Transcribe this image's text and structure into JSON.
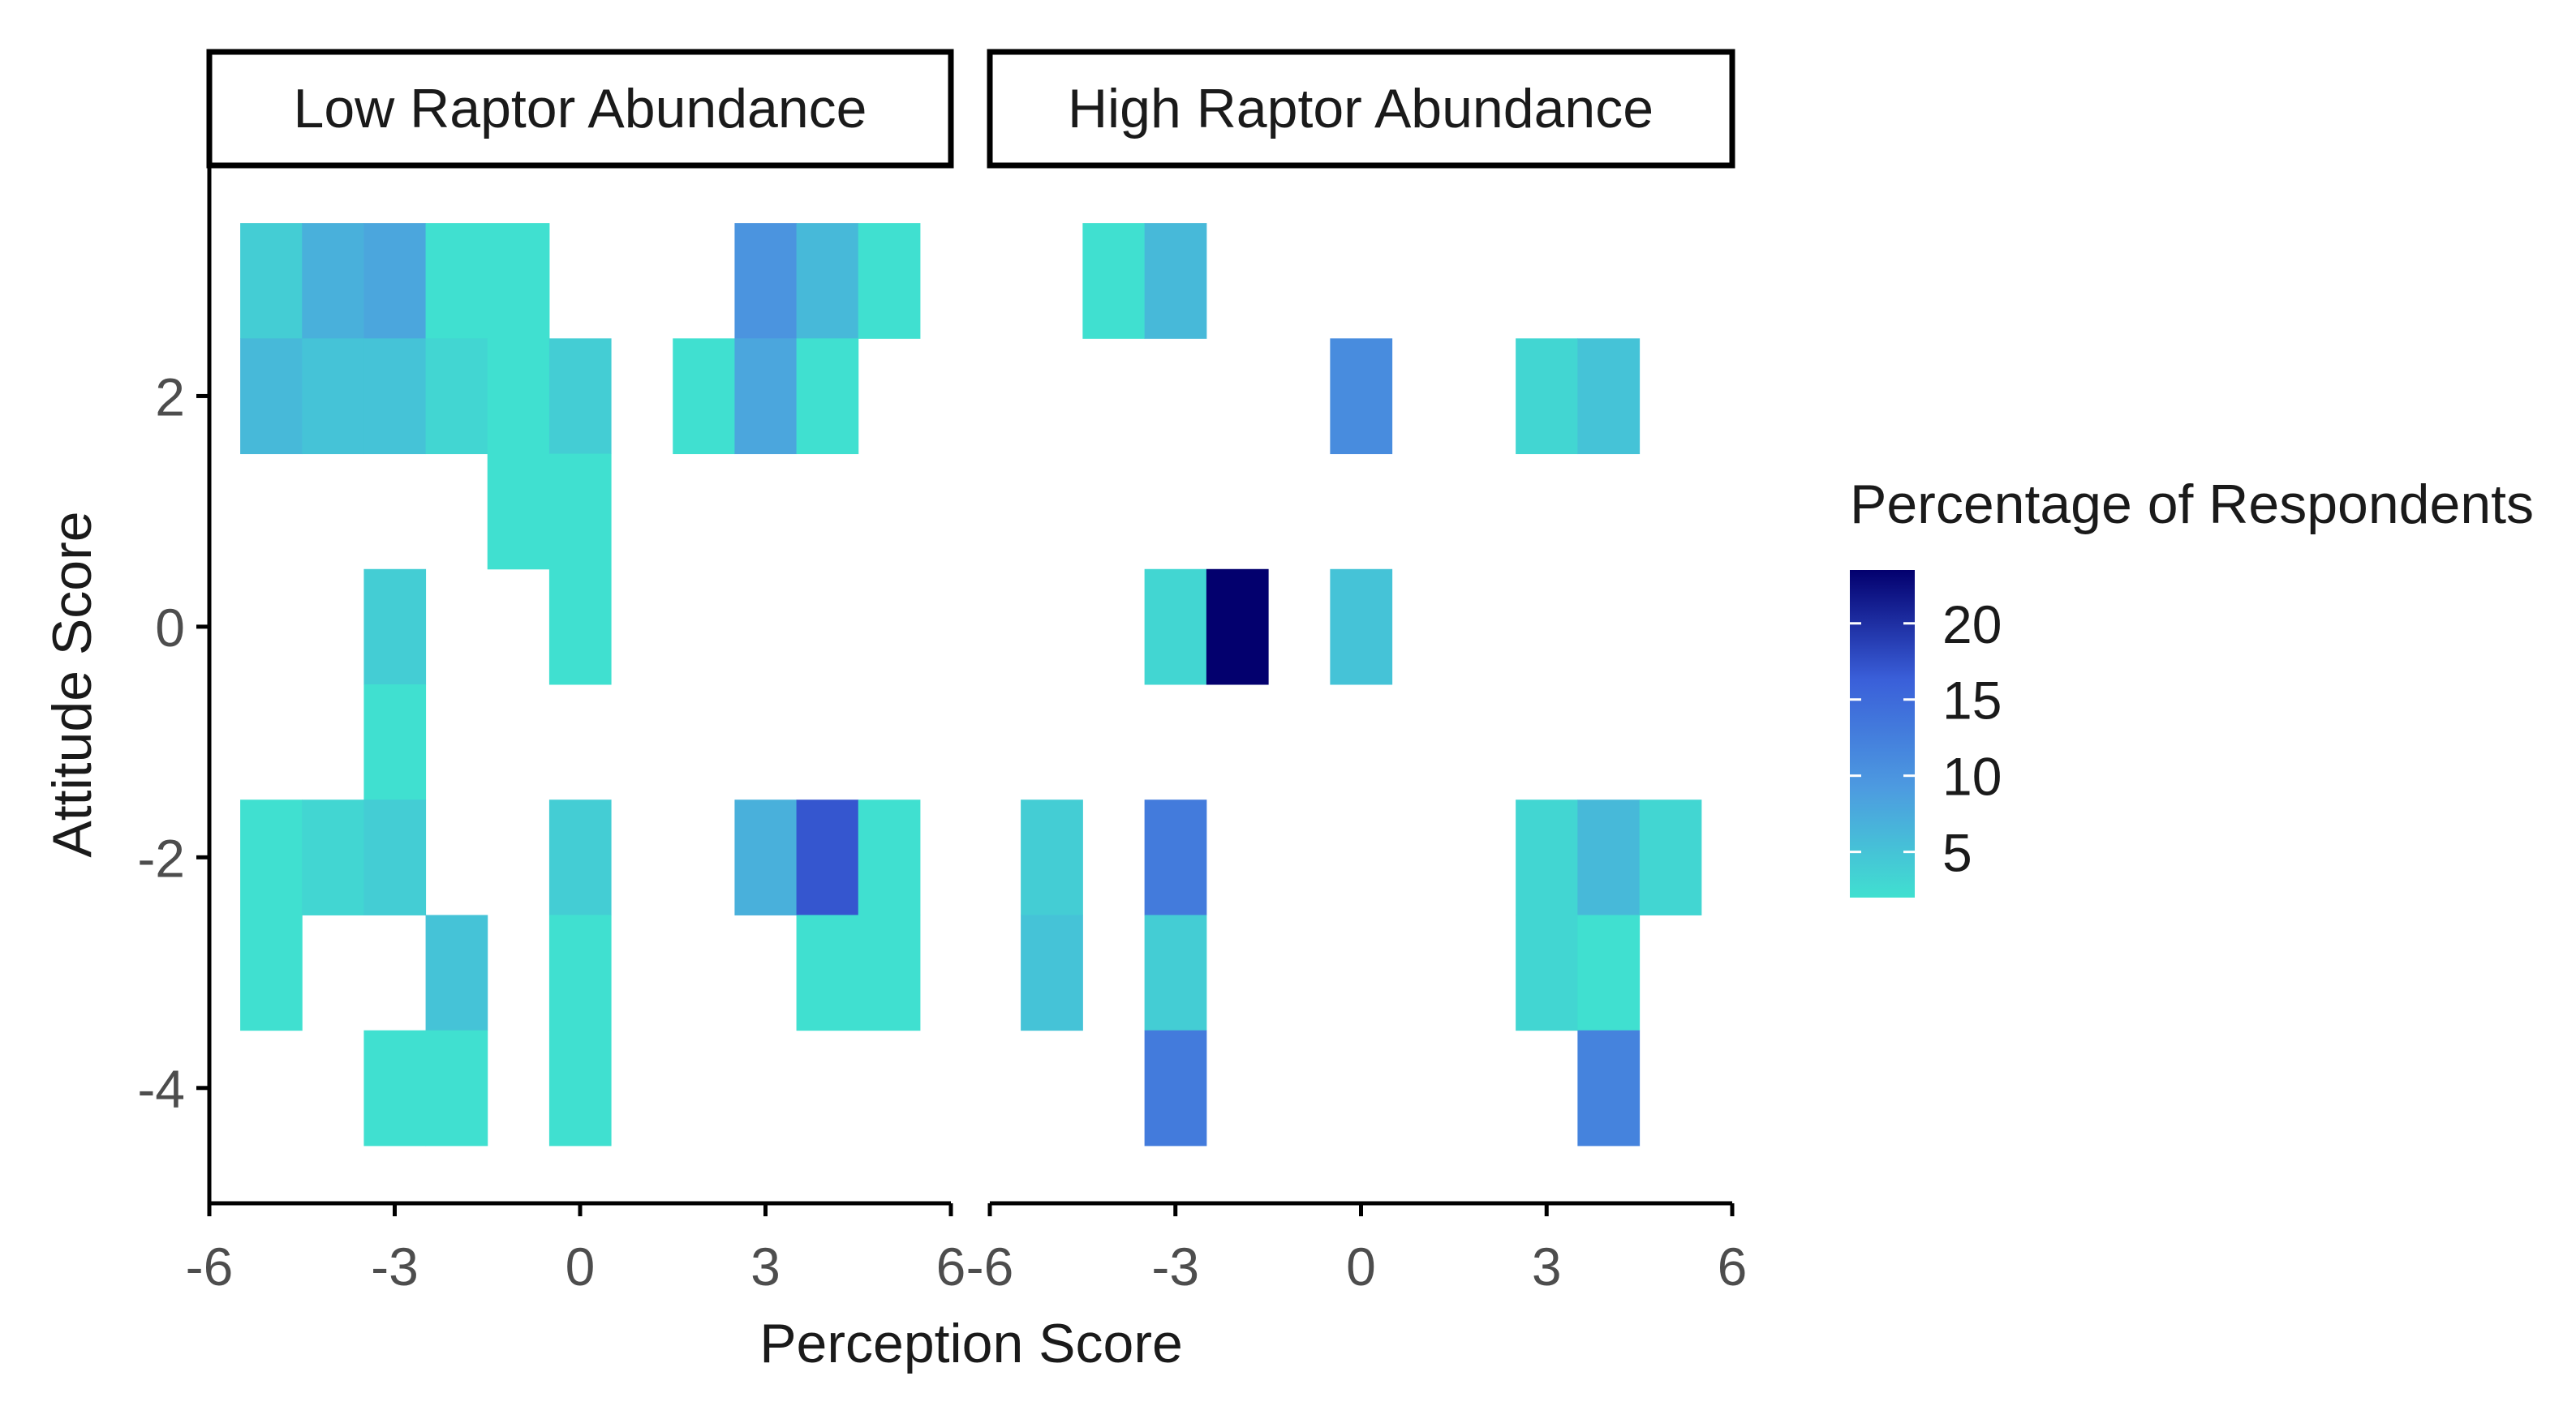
{
  "chart_data": {
    "type": "heatmap",
    "xlabel": "Perception Score",
    "ylabel": "Attitude Score",
    "xlim": [
      -6,
      6
    ],
    "ylim": [
      -5,
      4
    ],
    "x_ticks": [
      {
        "value": -6,
        "label": "-6"
      },
      {
        "value": -3,
        "label": "-3"
      },
      {
        "value": 0,
        "label": "0"
      },
      {
        "value": 3,
        "label": "3"
      },
      {
        "value": 6,
        "label": "6"
      }
    ],
    "y_ticks": [
      {
        "value": 2,
        "label": "2"
      },
      {
        "value": 0,
        "label": "0"
      },
      {
        "value": -2,
        "label": "-2"
      },
      {
        "value": -4,
        "label": "-4"
      }
    ],
    "legend": {
      "title": "Percentage of Respondents",
      "min": 2,
      "max": 23.5,
      "ticks": [
        5,
        10,
        15,
        20
      ],
      "tick_labels": [
        "5",
        "10",
        "15",
        "20"
      ],
      "colors": [
        "#40E0D0",
        "#4d9be0",
        "#3a5fd9",
        "#03006e"
      ],
      "placement": "right"
    },
    "panels": [
      {
        "title": "Low Raptor Abundance",
        "cells": [
          {
            "x": -5,
            "y": 3,
            "value": 4
          },
          {
            "x": -4,
            "y": 3,
            "value": 7
          },
          {
            "x": -3,
            "y": 3,
            "value": 8
          },
          {
            "x": -2,
            "y": 3,
            "value": 2
          },
          {
            "x": -1,
            "y": 3,
            "value": 2
          },
          {
            "x": 3,
            "y": 3,
            "value": 10
          },
          {
            "x": 4,
            "y": 3,
            "value": 6
          },
          {
            "x": 5,
            "y": 3,
            "value": 2
          },
          {
            "x": -5,
            "y": 2,
            "value": 6
          },
          {
            "x": -4,
            "y": 2,
            "value": 5
          },
          {
            "x": -3,
            "y": 2,
            "value": 5
          },
          {
            "x": -2,
            "y": 2,
            "value": 3
          },
          {
            "x": -1,
            "y": 2,
            "value": 2
          },
          {
            "x": 0,
            "y": 2,
            "value": 4
          },
          {
            "x": 2,
            "y": 2,
            "value": 2
          },
          {
            "x": 3,
            "y": 2,
            "value": 8
          },
          {
            "x": 4,
            "y": 2,
            "value": 2
          },
          {
            "x": -1,
            "y": 1,
            "value": 2
          },
          {
            "x": 0,
            "y": 1,
            "value": 2
          },
          {
            "x": -3,
            "y": 0,
            "value": 4
          },
          {
            "x": 0,
            "y": 0,
            "value": 2
          },
          {
            "x": -3,
            "y": -1,
            "value": 2
          },
          {
            "x": -5,
            "y": -2,
            "value": 2
          },
          {
            "x": -4,
            "y": -2,
            "value": 3
          },
          {
            "x": -3,
            "y": -2,
            "value": 4
          },
          {
            "x": 0,
            "y": -2,
            "value": 4
          },
          {
            "x": 3,
            "y": -2,
            "value": 7
          },
          {
            "x": 4,
            "y": -2,
            "value": 17
          },
          {
            "x": 5,
            "y": -2,
            "value": 2
          },
          {
            "x": -5,
            "y": -3,
            "value": 2
          },
          {
            "x": -2,
            "y": -3,
            "value": 5
          },
          {
            "x": 0,
            "y": -3,
            "value": 2
          },
          {
            "x": 4,
            "y": -3,
            "value": 2
          },
          {
            "x": 5,
            "y": -3,
            "value": 2
          },
          {
            "x": -3,
            "y": -4,
            "value": 2
          },
          {
            "x": -2,
            "y": -4,
            "value": 2
          },
          {
            "x": 0,
            "y": -4,
            "value": 2
          }
        ]
      },
      {
        "title": "High Raptor Abundance",
        "cells": [
          {
            "x": -4,
            "y": 3,
            "value": 2
          },
          {
            "x": -3,
            "y": 3,
            "value": 6
          },
          {
            "x": 0,
            "y": 2,
            "value": 11
          },
          {
            "x": 3,
            "y": 2,
            "value": 3
          },
          {
            "x": 4,
            "y": 2,
            "value": 5
          },
          {
            "x": -3,
            "y": 0,
            "value": 3
          },
          {
            "x": -2,
            "y": 0,
            "value": 23.5
          },
          {
            "x": 0,
            "y": 0,
            "value": 5
          },
          {
            "x": -5,
            "y": -2,
            "value": 4
          },
          {
            "x": -3,
            "y": -2,
            "value": 13
          },
          {
            "x": 3,
            "y": -2,
            "value": 3
          },
          {
            "x": 4,
            "y": -2,
            "value": 6
          },
          {
            "x": 5,
            "y": -2,
            "value": 3
          },
          {
            "x": -5,
            "y": -3,
            "value": 5
          },
          {
            "x": -3,
            "y": -3,
            "value": 4
          },
          {
            "x": 3,
            "y": -3,
            "value": 3
          },
          {
            "x": 4,
            "y": -3,
            "value": 2
          },
          {
            "x": -3,
            "y": -4,
            "value": 13
          },
          {
            "x": 4,
            "y": -4,
            "value": 12
          }
        ]
      }
    ]
  }
}
